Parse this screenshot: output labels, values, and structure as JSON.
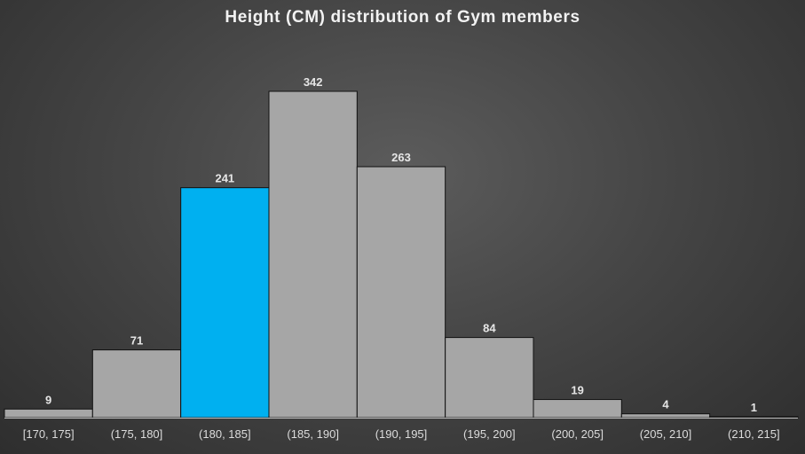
{
  "chart_data": {
    "type": "bar",
    "title": "Height (CM) distribution of Gym members",
    "xlabel": "",
    "ylabel": "",
    "categories": [
      "[170, 175]",
      "(175, 180]",
      "(180, 185]",
      "(185, 190]",
      "(190, 195]",
      "(195, 200]",
      "(200, 205]",
      "(205, 210]",
      "(210, 215]"
    ],
    "values": [
      9,
      71,
      241,
      342,
      263,
      84,
      19,
      4,
      1
    ],
    "ylim": [
      0,
      342
    ],
    "grid": false,
    "legend": "none",
    "data_labels": true,
    "highlight_index": 2,
    "colors": {
      "bar": "#a6a6a6",
      "highlight": "#00b0f0",
      "bar_edge": "#111111",
      "axis": "#bfbfbf"
    }
  }
}
